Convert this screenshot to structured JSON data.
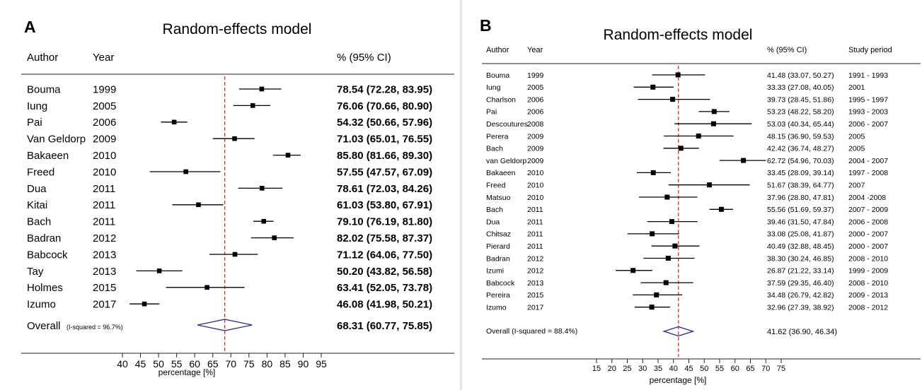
{
  "panels": [
    {
      "letter": "A",
      "title": "Random-effects model",
      "headers": {
        "author": "Author",
        "year": "Year",
        "ci": "% (95% CI)"
      },
      "overall": {
        "label": "Overall",
        "isq": "(I-squared = 96.7%)",
        "ci_text": "68.31 (60.77, 75.85)"
      },
      "xlabel": "percentage [%]"
    },
    {
      "letter": "B",
      "title": "Random-effects model",
      "headers": {
        "author": "Author",
        "year": "Year",
        "ci": "% (95% CI)",
        "period": "Study  period"
      },
      "overall": {
        "label": "Overall (I-squared =  88.4%)",
        "isq": "",
        "ci_text": "41.62 (36.90, 46.34)"
      },
      "xlabel": "percentage [%]"
    }
  ],
  "colors": {
    "reference_line": "#e0302a",
    "diamond": "#2b2f9a",
    "marker": "#000000",
    "axis": "#222222"
  },
  "chart_data": [
    {
      "type": "forest",
      "title": "Random-effects model",
      "xlabel": "percentage [%]",
      "xlim": [
        40,
        95
      ],
      "xticks": [
        40,
        45,
        50,
        55,
        60,
        65,
        70,
        75,
        80,
        85,
        90,
        95
      ],
      "reference": 68.31,
      "studies": [
        {
          "author": "Bouma",
          "year": "1999",
          "est": 78.54,
          "lo": 72.28,
          "hi": 83.95,
          "ci_text": "78.54 (72.28, 83.95)"
        },
        {
          "author": "Iung",
          "year": "2005",
          "est": 76.06,
          "lo": 70.66,
          "hi": 80.9,
          "ci_text": "76.06 (70.66, 80.90)"
        },
        {
          "author": "Pai",
          "year": "2006",
          "est": 54.32,
          "lo": 50.66,
          "hi": 57.96,
          "ci_text": "54.32 (50.66, 57.96)"
        },
        {
          "author": "Van Geldorp",
          "year": "2009",
          "est": 71.03,
          "lo": 65.01,
          "hi": 76.55,
          "ci_text": "71.03 (65.01, 76.55)"
        },
        {
          "author": "Bakaeen",
          "year": "2010",
          "est": 85.8,
          "lo": 81.66,
          "hi": 89.3,
          "ci_text": "85.80 (81.66, 89.30)"
        },
        {
          "author": "Freed",
          "year": "2010",
          "est": 57.55,
          "lo": 47.57,
          "hi": 67.09,
          "ci_text": "57.55 (47.57, 67.09)"
        },
        {
          "author": "Dua",
          "year": "2011",
          "est": 78.61,
          "lo": 72.03,
          "hi": 84.26,
          "ci_text": "78.61 (72.03, 84.26)"
        },
        {
          "author": "Kitai",
          "year": "2011",
          "est": 61.03,
          "lo": 53.8,
          "hi": 67.91,
          "ci_text": "61.03 (53.80, 67.91)"
        },
        {
          "author": "Bach",
          "year": "2011",
          "est": 79.1,
          "lo": 76.19,
          "hi": 81.8,
          "ci_text": "79.10 (76.19, 81.80)"
        },
        {
          "author": "Badran",
          "year": "2012",
          "est": 82.02,
          "lo": 75.58,
          "hi": 87.37,
          "ci_text": "82.02 (75.58, 87.37)"
        },
        {
          "author": "Babcock",
          "year": "2013",
          "est": 71.12,
          "lo": 64.06,
          "hi": 77.5,
          "ci_text": "71.12 (64.06, 77.50)"
        },
        {
          "author": "Tay",
          "year": "2013",
          "est": 50.2,
          "lo": 43.82,
          "hi": 56.58,
          "ci_text": "50.20 (43.82, 56.58)"
        },
        {
          "author": "Holmes",
          "year": "2015",
          "est": 63.41,
          "lo": 52.05,
          "hi": 73.78,
          "ci_text": "63.41 (52.05, 73.78)"
        },
        {
          "author": "Izumo",
          "year": "2017",
          "est": 46.08,
          "lo": 41.98,
          "hi": 50.21,
          "ci_text": "46.08 (41.98, 50.21)"
        }
      ],
      "overall": {
        "est": 68.31,
        "lo": 60.77,
        "hi": 75.85,
        "i_squared": "96.7%"
      }
    },
    {
      "type": "forest",
      "title": "Random-effects model",
      "xlabel": "percentage [%]",
      "xlim": [
        15,
        75
      ],
      "xticks": [
        15,
        20,
        25,
        30,
        35,
        40,
        45,
        50,
        55,
        60,
        65,
        70,
        75
      ],
      "reference": 41.62,
      "studies": [
        {
          "author": "Bouma",
          "year": "1999",
          "est": 41.48,
          "lo": 33.07,
          "hi": 50.27,
          "ci_text": "41.48 (33.07, 50.27)",
          "period": "1991 - 1993"
        },
        {
          "author": "Iung",
          "year": "2005",
          "est": 33.33,
          "lo": 27.08,
          "hi": 40.05,
          "ci_text": "33.33 (27.08, 40.05)",
          "period": "2001"
        },
        {
          "author": "Charlson",
          "year": "2006",
          "est": 39.73,
          "lo": 28.45,
          "hi": 51.86,
          "ci_text": "39.73 (28.45, 51.86)",
          "period": "1995 - 1997"
        },
        {
          "author": "Pai",
          "year": "2006",
          "est": 53.23,
          "lo": 48.22,
          "hi": 58.2,
          "ci_text": "53.23 (48.22, 58.20)",
          "period": "1993 - 2003"
        },
        {
          "author": "Descoutures",
          "year": "2008",
          "est": 53.03,
          "lo": 40.34,
          "hi": 65.44,
          "ci_text": "53.03 (40.34, 65.44)",
          "period": "2006 - 2007"
        },
        {
          "author": "Perera",
          "year": "2009",
          "est": 48.15,
          "lo": 36.9,
          "hi": 59.53,
          "ci_text": "48.15 (36.90, 59.53)",
          "period": "2005"
        },
        {
          "author": "Bach",
          "year": "2009",
          "est": 42.42,
          "lo": 36.74,
          "hi": 48.27,
          "ci_text": "42.42 (36.74, 48.27)",
          "period": "2005"
        },
        {
          "author": "van Geldorp",
          "year": "2009",
          "est": 62.72,
          "lo": 54.96,
          "hi": 70.03,
          "ci_text": "62.72 (54.96, 70.03)",
          "period": "2004 - 2007"
        },
        {
          "author": "Bakaeen",
          "year": "2010",
          "est": 33.45,
          "lo": 28.09,
          "hi": 39.14,
          "ci_text": "33.45 (28.09, 39.14)",
          "period": "1997 - 2008"
        },
        {
          "author": "Freed",
          "year": "2010",
          "est": 51.67,
          "lo": 38.39,
          "hi": 64.77,
          "ci_text": "51.67 (38.39, 64.77)",
          "period": "2007"
        },
        {
          "author": "Matsuo",
          "year": "2010",
          "est": 37.96,
          "lo": 28.8,
          "hi": 47.81,
          "ci_text": "37.96 (28.80, 47.81)",
          "period": "2004 -2008"
        },
        {
          "author": "Bach",
          "year": "2011",
          "est": 55.56,
          "lo": 51.69,
          "hi": 59.37,
          "ci_text": "55.56 (51.69, 59.37)",
          "period": "2007 - 2009"
        },
        {
          "author": "Dua",
          "year": "2011",
          "est": 39.46,
          "lo": 31.5,
          "hi": 47.84,
          "ci_text": "39.46 (31.50, 47.84)",
          "period": "2006 - 2008"
        },
        {
          "author": "Chitsaz",
          "year": "2011",
          "est": 33.08,
          "lo": 25.08,
          "hi": 41.87,
          "ci_text": "33.08 (25.08, 41.87)",
          "period": "2000 - 2007"
        },
        {
          "author": "Pierard",
          "year": "2011",
          "est": 40.49,
          "lo": 32.88,
          "hi": 48.45,
          "ci_text": "40.49 (32.88, 48.45)",
          "period": "2000 - 2007"
        },
        {
          "author": "Badran",
          "year": "2012",
          "est": 38.3,
          "lo": 30.24,
          "hi": 46.85,
          "ci_text": "38.30 (30.24, 46.85)",
          "period": "2008 - 2010"
        },
        {
          "author": "Izumi",
          "year": "2012",
          "est": 26.87,
          "lo": 21.22,
          "hi": 33.14,
          "ci_text": "26.87 (21.22, 33.14)",
          "period": "1999 - 2009"
        },
        {
          "author": "Babcock",
          "year": "2013",
          "est": 37.59,
          "lo": 29.35,
          "hi": 46.4,
          "ci_text": "37.59 (29.35, 46.40)",
          "period": "2008 - 2010"
        },
        {
          "author": "Pereira",
          "year": "2015",
          "est": 34.48,
          "lo": 26.79,
          "hi": 42.82,
          "ci_text": "34.48 (26.79, 42.82)",
          "period": "2009 - 2013"
        },
        {
          "author": "Izumo",
          "year": "2017",
          "est": 32.96,
          "lo": 27.39,
          "hi": 38.92,
          "ci_text": "32.96 (27.39, 38.92)",
          "period": "2008 - 2012"
        }
      ],
      "overall": {
        "est": 41.62,
        "lo": 36.9,
        "hi": 46.34,
        "i_squared": "88.4%"
      }
    }
  ]
}
